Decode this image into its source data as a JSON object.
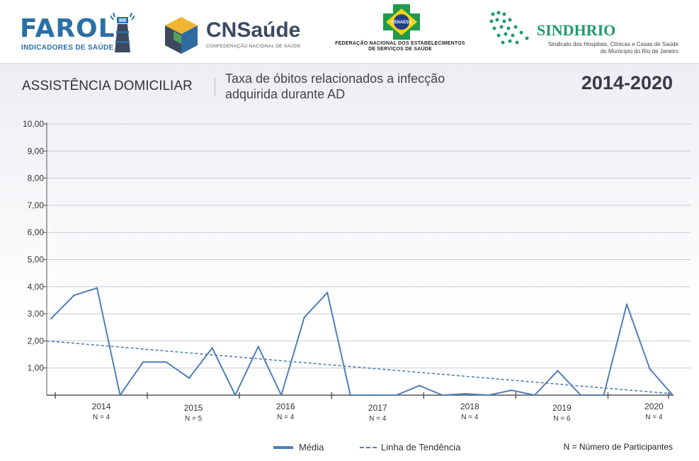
{
  "header": {
    "logos": {
      "farol": {
        "word": "FAROL",
        "sub": "INDICADORES DE SAÚDE"
      },
      "cnsaude": {
        "word": "CNSaúde",
        "sub": "CONFEDERAÇÃO NACIONAL DE SAÚDE"
      },
      "fenaess": {
        "badge": "FENAESS",
        "line1": "FEDERAÇÃO NACIONAL DOS ESTABELECIMENTOS",
        "line2": "DE SERVIÇOS DE SAÚDE"
      },
      "sindhrio": {
        "word": "SINDHRIO",
        "line1": "Sindicato dos Hospitais, Clínicas e Casas de Saúde",
        "line2": "do Município do Rio de Janeiro"
      }
    },
    "section": "ASSISTÊNCIA DOMICILIAR",
    "title": "Taxa de óbitos relacionados a infecção adquirida durante AD",
    "period": "2014-2020"
  },
  "colors": {
    "series": "#4f7fb6",
    "grid": "#c9c9cf",
    "axis": "#555555"
  },
  "chart_data": {
    "type": "line",
    "ylim": [
      0,
      10
    ],
    "yticks": [
      "10,00",
      "9,00",
      "8,00",
      "7,00",
      "6,00",
      "5,00",
      "4,00",
      "3,00",
      "2,00",
      "1,00"
    ],
    "grid": true,
    "legend_position": "bottom",
    "series": [
      {
        "name": "Média",
        "style": "solid",
        "values": [
          2.82,
          3.68,
          3.95,
          0,
          1.22,
          1.22,
          0.63,
          1.74,
          0,
          1.79,
          0,
          2.87,
          3.78,
          0,
          0,
          0,
          0.35,
          0,
          0.05,
          0,
          0.18,
          0,
          0.9,
          0,
          0,
          3.35,
          0.97,
          0
        ]
      },
      {
        "name": "Linha de Tendência",
        "style": "dashed",
        "values": [
          2.0,
          0.05
        ]
      }
    ],
    "year_groups": [
      {
        "year": "2014",
        "n": "N = 4"
      },
      {
        "year": "2015",
        "n": "N = 5"
      },
      {
        "year": "2016",
        "n": "N = 4"
      },
      {
        "year": "2017",
        "n": "N = 4"
      },
      {
        "year": "2018",
        "n": "N = 4"
      },
      {
        "year": "2019",
        "n": "N = 6"
      },
      {
        "year": "2020",
        "n": "N = 4"
      }
    ]
  },
  "legend": {
    "media": "Média",
    "tendencia": "Linha de Tendência",
    "note": "N = Número de Participantes"
  }
}
